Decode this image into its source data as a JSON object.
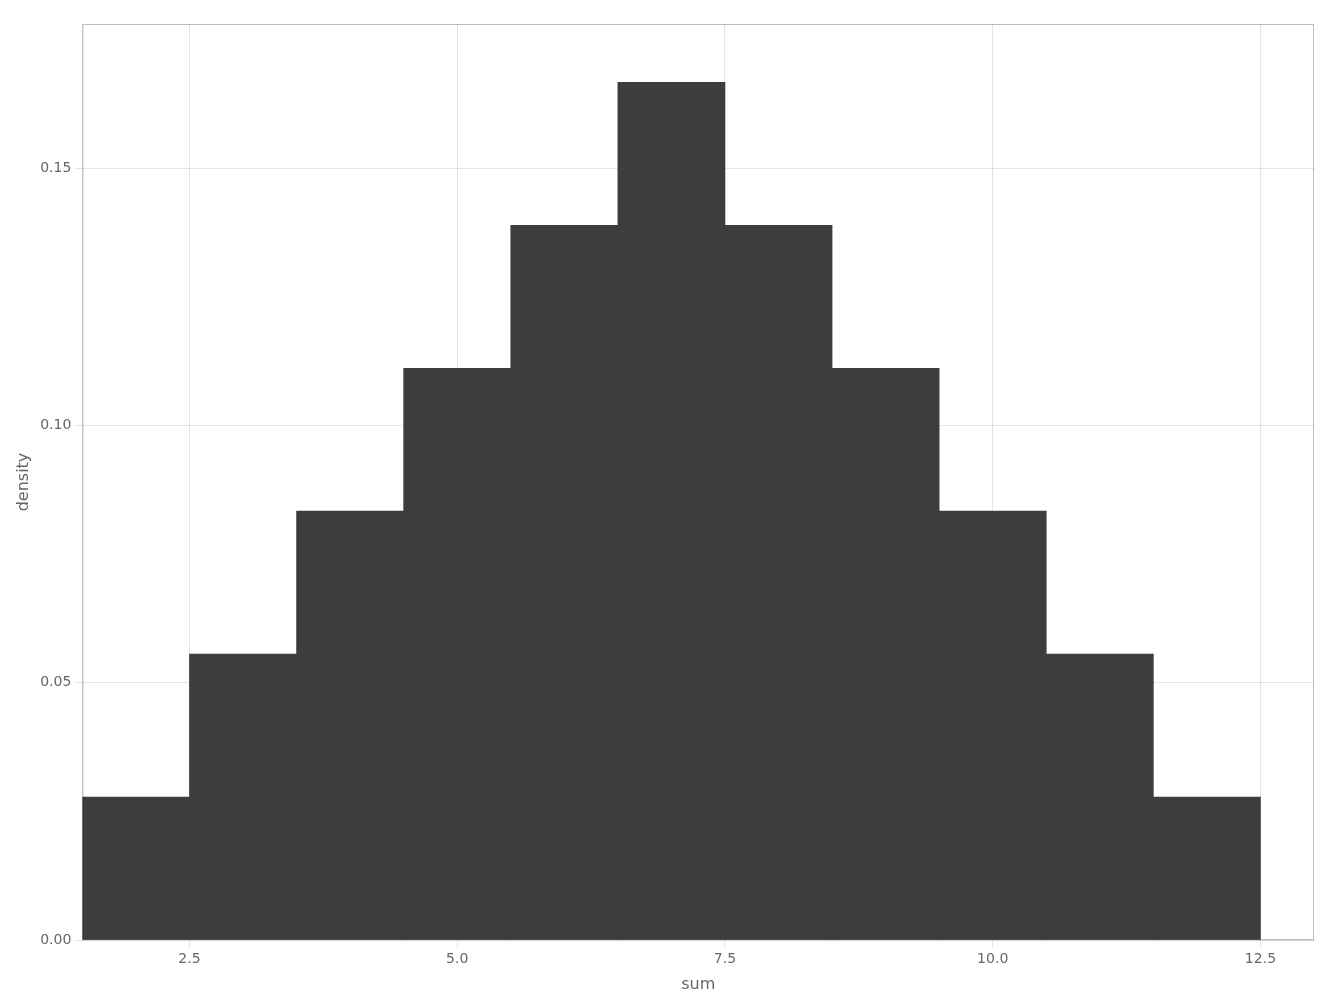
{
  "chart_data": {
    "type": "histogram",
    "xlabel": "sum",
    "ylabel": "density",
    "bins": [
      1.5,
      2.5,
      3.5,
      4.5,
      5.5,
      6.5,
      7.5,
      8.5,
      9.5,
      10.5,
      11.5,
      12.5
    ],
    "values": [
      0.027778,
      0.055556,
      0.083333,
      0.111111,
      0.138889,
      0.166667,
      0.138889,
      0.111111,
      0.083333,
      0.055556,
      0.027778
    ],
    "color": "#3d3d3d",
    "xlim": [
      1.5,
      13.0
    ],
    "ylim": [
      0.0,
      0.178
    ],
    "xticks": [
      2.5,
      {
        "value": 5,
        "label": "5.0"
      },
      7.5,
      {
        "value": 10,
        "label": "10.0"
      },
      12.5
    ],
    "yticks": [
      {
        "value": 0,
        "label": "0.00"
      },
      0.05,
      {
        "value": 0.1,
        "label": "0.10"
      },
      0.15
    ],
    "grid": true
  }
}
